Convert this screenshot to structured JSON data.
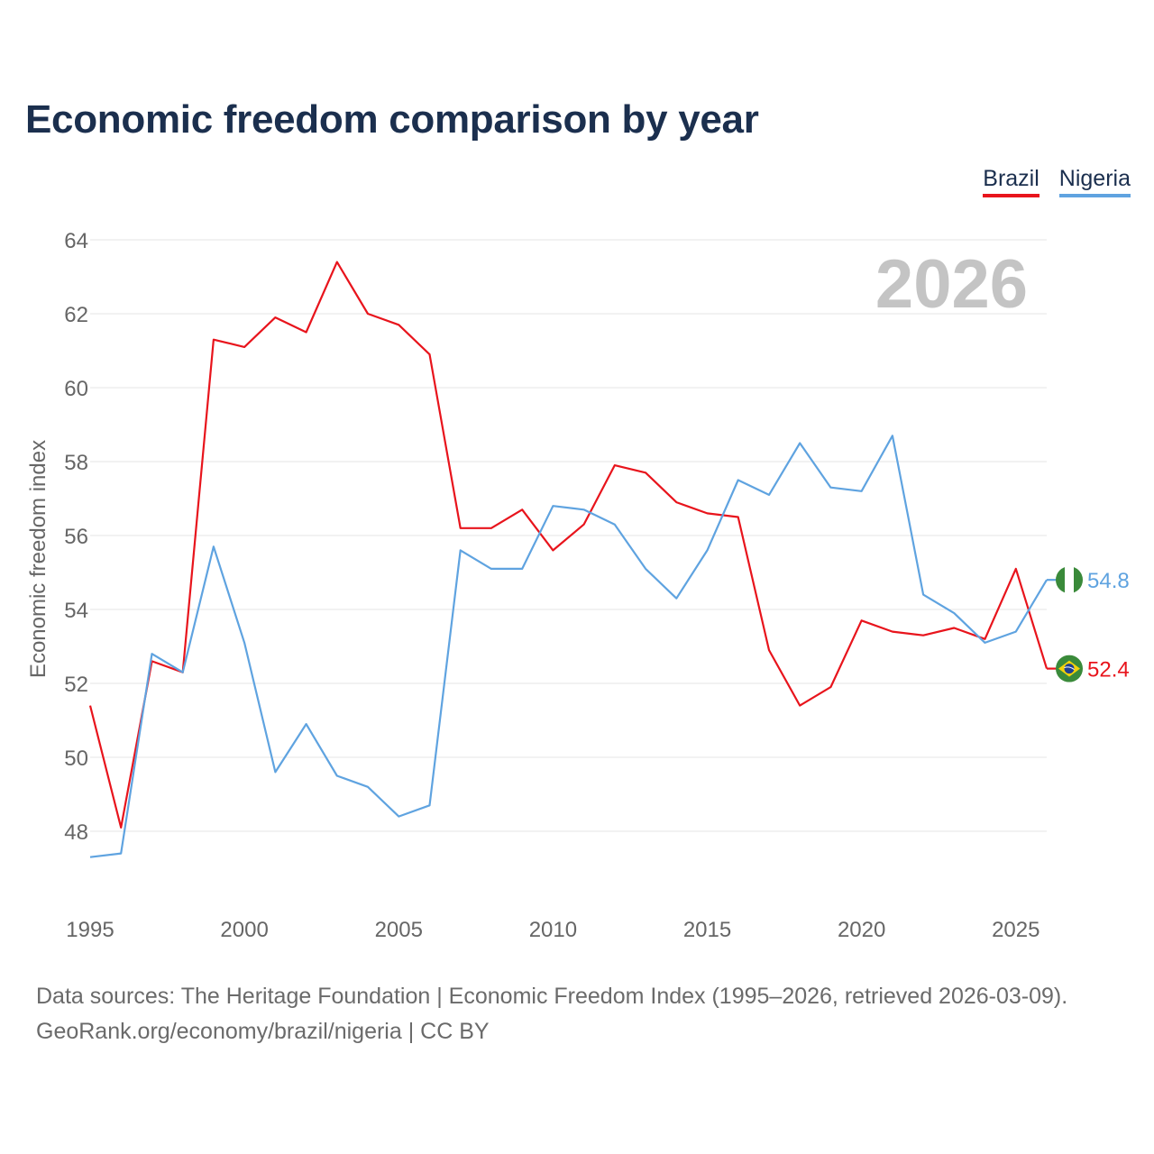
{
  "title": "Economic freedom comparison by year",
  "legend": [
    {
      "label": "Brazil",
      "color": "#e8141c"
    },
    {
      "label": "Nigeria",
      "color": "#5fa3e0"
    }
  ],
  "footer": {
    "line1": "Data sources: The Heritage Foundation | Economic Freedom Index (1995–2026, retrieved 2026-03-09).",
    "line2": "GeoRank.org/economy/brazil/nigeria | CC BY"
  },
  "chart_data": {
    "type": "line",
    "title": "Economic freedom comparison by year",
    "watermark": "2026",
    "xlabel": "",
    "ylabel": "Economic freedom index",
    "xlim": [
      1995,
      2026
    ],
    "ylim": [
      46,
      65
    ],
    "x_ticks": [
      1995,
      2000,
      2005,
      2010,
      2015,
      2020,
      2025
    ],
    "y_ticks": [
      48,
      50,
      52,
      54,
      56,
      58,
      60,
      62,
      64
    ],
    "grid": true,
    "legend_position": "top-right",
    "x": [
      1995,
      1996,
      1997,
      1998,
      1999,
      2000,
      2001,
      2002,
      2003,
      2004,
      2005,
      2006,
      2007,
      2008,
      2009,
      2010,
      2011,
      2012,
      2013,
      2014,
      2015,
      2016,
      2017,
      2018,
      2019,
      2020,
      2021,
      2022,
      2023,
      2024,
      2025,
      2026
    ],
    "series": [
      {
        "name": "Brazil",
        "color": "#e8141c",
        "end_label": "52.4",
        "flag": "brazil-flag-icon",
        "values": [
          51.4,
          48.1,
          52.6,
          52.3,
          61.3,
          61.1,
          61.9,
          61.5,
          63.4,
          62.0,
          61.7,
          60.9,
          56.2,
          56.2,
          56.7,
          55.6,
          56.3,
          57.9,
          57.7,
          56.9,
          56.6,
          56.5,
          52.9,
          51.4,
          51.9,
          53.7,
          53.4,
          53.3,
          53.5,
          53.2,
          55.1,
          52.4
        ]
      },
      {
        "name": "Nigeria",
        "color": "#5fa3e0",
        "end_label": "54.8",
        "flag": "nigeria-flag-icon",
        "values": [
          47.3,
          47.4,
          52.8,
          52.3,
          55.7,
          53.1,
          49.6,
          50.9,
          49.5,
          49.2,
          48.4,
          48.7,
          55.6,
          55.1,
          55.1,
          56.8,
          56.7,
          56.3,
          55.1,
          54.3,
          55.6,
          57.5,
          57.1,
          58.5,
          57.3,
          57.2,
          58.7,
          54.4,
          53.9,
          53.1,
          53.4,
          54.8
        ]
      }
    ]
  }
}
